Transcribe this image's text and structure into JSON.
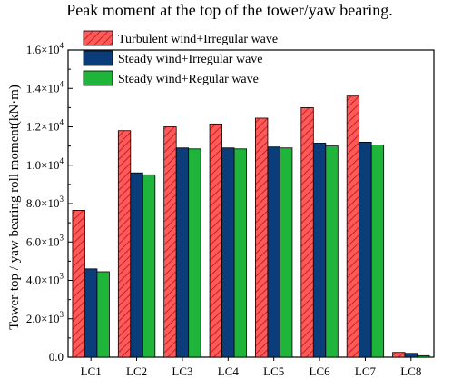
{
  "chart_data": {
    "type": "bar",
    "title": "Peak moment at the top of the tower/yaw bearing.",
    "ylabel": "Tower-top / yaw bearing roll moment(kN·m)",
    "xlabel": "",
    "categories": [
      "LC1",
      "LC2",
      "LC3",
      "LC4",
      "LC5",
      "LC6",
      "LC7",
      "LC8"
    ],
    "ylim": [
      0,
      16000
    ],
    "yticks": [
      {
        "value": 0,
        "mantissa": "0.0",
        "exponent": ""
      },
      {
        "value": 2000,
        "mantissa": "2.0×10",
        "exponent": "3"
      },
      {
        "value": 4000,
        "mantissa": "4.0×10",
        "exponent": "3"
      },
      {
        "value": 6000,
        "mantissa": "6.0×10",
        "exponent": "3"
      },
      {
        "value": 8000,
        "mantissa": "8.0×10",
        "exponent": "3"
      },
      {
        "value": 10000,
        "mantissa": "1.0×10",
        "exponent": "4"
      },
      {
        "value": 12000,
        "mantissa": "1.2×10",
        "exponent": "4"
      },
      {
        "value": 14000,
        "mantissa": "1.4×10",
        "exponent": "4"
      },
      {
        "value": 16000,
        "mantissa": "1.6×10",
        "exponent": "4"
      }
    ],
    "series": [
      {
        "name": "Turbulent wind+Irregular wave",
        "color": "#ff4d4d",
        "pattern": "hatched",
        "values": [
          7650,
          11800,
          12000,
          12150,
          12450,
          13000,
          13600,
          250
        ]
      },
      {
        "name": "Steady wind+Irregular wave",
        "color": "#0b3d7a",
        "pattern": "solid",
        "values": [
          4600,
          9600,
          10900,
          10900,
          10950,
          11150,
          11200,
          200
        ]
      },
      {
        "name": "Steady wind+Regular wave",
        "color": "#1fb53a",
        "pattern": "solid",
        "values": [
          4450,
          9500,
          10850,
          10850,
          10900,
          11000,
          11050,
          80
        ]
      }
    ],
    "legend_position": "top-left",
    "grid": false
  }
}
